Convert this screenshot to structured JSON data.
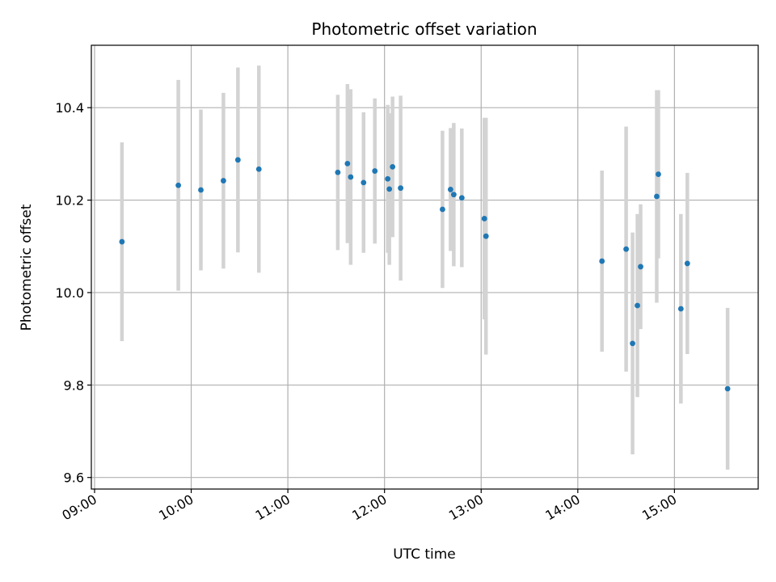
{
  "chart_data": {
    "type": "scatter",
    "title": "Photometric offset variation",
    "xlabel": "UTC time",
    "ylabel": "Photometric offset",
    "x_ticks": [
      "09:00",
      "10:00",
      "11:00",
      "12:00",
      "13:00",
      "14:00",
      "15:00"
    ],
    "y_ticks": [
      "9.6",
      "9.8",
      "10.0",
      "10.2",
      "10.4"
    ],
    "xlim": [
      "08:58",
      "15:52"
    ],
    "ylim": [
      9.575,
      10.535
    ],
    "grid": true,
    "point_color": "#1f77b4",
    "errorbar_color": "#d3d3d3",
    "points": [
      {
        "t": "09:17",
        "y": 10.11,
        "err": 0.215
      },
      {
        "t": "09:52",
        "y": 10.232,
        "err": 0.228
      },
      {
        "t": "10:06",
        "y": 10.222,
        "err": 0.174
      },
      {
        "t": "10:20",
        "y": 10.242,
        "err": 0.19
      },
      {
        "t": "10:29",
        "y": 10.287,
        "err": 0.2
      },
      {
        "t": "10:42",
        "y": 10.267,
        "err": 0.224
      },
      {
        "t": "11:31",
        "y": 10.26,
        "err": 0.168
      },
      {
        "t": "11:37",
        "y": 10.279,
        "err": 0.172
      },
      {
        "t": "11:39",
        "y": 10.25,
        "err": 0.19
      },
      {
        "t": "11:47",
        "y": 10.238,
        "err": 0.152
      },
      {
        "t": "11:54",
        "y": 10.263,
        "err": 0.157
      },
      {
        "t": "12:02",
        "y": 10.246,
        "err": 0.16
      },
      {
        "t": "12:03",
        "y": 10.224,
        "err": 0.164
      },
      {
        "t": "12:05",
        "y": 10.272,
        "err": 0.152
      },
      {
        "t": "12:10",
        "y": 10.226,
        "err": 0.2
      },
      {
        "t": "12:36",
        "y": 10.18,
        "err": 0.17
      },
      {
        "t": "12:41",
        "y": 10.223,
        "err": 0.133
      },
      {
        "t": "12:43",
        "y": 10.212,
        "err": 0.155
      },
      {
        "t": "12:48",
        "y": 10.205,
        "err": 0.15
      },
      {
        "t": "13:02",
        "y": 10.16,
        "err": 0.218
      },
      {
        "t": "13:03",
        "y": 10.122,
        "err": 0.256
      },
      {
        "t": "14:15",
        "y": 10.068,
        "err": 0.196
      },
      {
        "t": "14:30",
        "y": 10.094,
        "err": 0.265
      },
      {
        "t": "14:34",
        "y": 9.89,
        "err": 0.24
      },
      {
        "t": "14:37",
        "y": 9.972,
        "err": 0.198
      },
      {
        "t": "14:39",
        "y": 10.056,
        "err": 0.135
      },
      {
        "t": "14:49",
        "y": 10.208,
        "err": 0.23
      },
      {
        "t": "14:50",
        "y": 10.256,
        "err": 0.182
      },
      {
        "t": "15:04",
        "y": 9.965,
        "err": 0.205
      },
      {
        "t": "15:08",
        "y": 10.063,
        "err": 0.196
      },
      {
        "t": "15:33",
        "y": 9.792,
        "err": 0.175
      }
    ]
  }
}
